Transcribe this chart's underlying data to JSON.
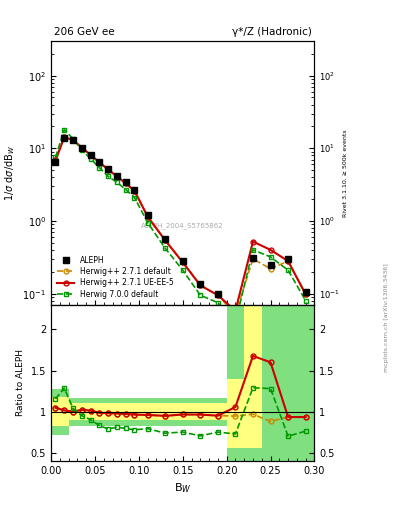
{
  "title_left": "206 GeV ee",
  "title_right": "γ*/Z (Hadronic)",
  "xlabel": "B_{W}",
  "ylabel_main": "1/σ dσ/dB_{W}",
  "ylabel_ratio": "Ratio to ALEPH",
  "right_label_top": "Rivet 3.1.10, ≥ 500k events",
  "right_label_bot": "mcplots.cern.ch [arXiv:1306.3436]",
  "watermark": "ALEPH_2004_S5765862",
  "bw_x": [
    0.005,
    0.015,
    0.025,
    0.035,
    0.045,
    0.055,
    0.065,
    0.075,
    0.085,
    0.095,
    0.11,
    0.13,
    0.15,
    0.17,
    0.19,
    0.21,
    0.23,
    0.25,
    0.27,
    0.29
  ],
  "aleph_y": [
    6.5,
    14.0,
    13.0,
    10.0,
    8.0,
    6.5,
    5.2,
    4.2,
    3.4,
    2.7,
    1.2,
    0.57,
    0.28,
    0.135,
    0.1,
    0.055,
    0.31,
    0.25,
    0.3,
    0.105
  ],
  "hw271d_y": [
    6.8,
    14.2,
    13.0,
    10.2,
    8.1,
    6.4,
    5.1,
    4.1,
    3.3,
    2.6,
    1.15,
    0.54,
    0.27,
    0.13,
    0.095,
    0.052,
    0.3,
    0.22,
    0.28,
    0.098
  ],
  "hw271u_y": [
    6.8,
    14.2,
    13.0,
    10.2,
    8.1,
    6.4,
    5.1,
    4.1,
    3.3,
    2.6,
    1.15,
    0.54,
    0.27,
    0.13,
    0.095,
    0.058,
    0.52,
    0.4,
    0.28,
    0.098
  ],
  "hw700d_y": [
    7.5,
    18.0,
    13.5,
    9.5,
    7.2,
    5.4,
    4.1,
    3.4,
    2.7,
    2.1,
    0.95,
    0.42,
    0.21,
    0.095,
    0.075,
    0.04,
    0.4,
    0.32,
    0.21,
    0.08
  ],
  "bw_edges": [
    0.0,
    0.01,
    0.02,
    0.03,
    0.04,
    0.05,
    0.06,
    0.07,
    0.08,
    0.09,
    0.1,
    0.12,
    0.14,
    0.16,
    0.18,
    0.2,
    0.22,
    0.24,
    0.26,
    0.28,
    0.3
  ],
  "green_lo": [
    0.72,
    0.72,
    0.83,
    0.83,
    0.83,
    0.83,
    0.83,
    0.83,
    0.83,
    0.83,
    0.83,
    0.83,
    0.83,
    0.83,
    0.83,
    0.4,
    0.4,
    0.4,
    0.4,
    0.4
  ],
  "green_hi": [
    1.28,
    1.28,
    1.17,
    1.17,
    1.17,
    1.17,
    1.17,
    1.17,
    1.17,
    1.17,
    1.17,
    1.17,
    1.17,
    1.17,
    1.17,
    2.3,
    2.3,
    2.3,
    2.3,
    2.3
  ],
  "yellow_lo": [
    0.82,
    0.82,
    0.9,
    0.9,
    0.9,
    0.9,
    0.9,
    0.9,
    0.9,
    0.9,
    0.9,
    0.9,
    0.9,
    0.9,
    0.9,
    0.55,
    0.55,
    2.3,
    2.3,
    2.3
  ],
  "yellow_hi": [
    1.18,
    1.18,
    1.1,
    1.1,
    1.1,
    1.1,
    1.1,
    1.1,
    1.1,
    1.1,
    1.1,
    1.1,
    1.1,
    1.1,
    1.1,
    1.4,
    2.3,
    2.3,
    2.3,
    2.3
  ],
  "ylim_main": [
    0.07,
    300
  ],
  "ylim_ratio": [
    0.4,
    2.3
  ],
  "xlim": [
    0.0,
    0.3
  ],
  "color_aleph": "#000000",
  "color_hw271d": "#cc8800",
  "color_hw271u": "#cc0000",
  "color_hw700d": "#009900",
  "color_green_band": "#80e080",
  "color_yellow_band": "#ffff80"
}
